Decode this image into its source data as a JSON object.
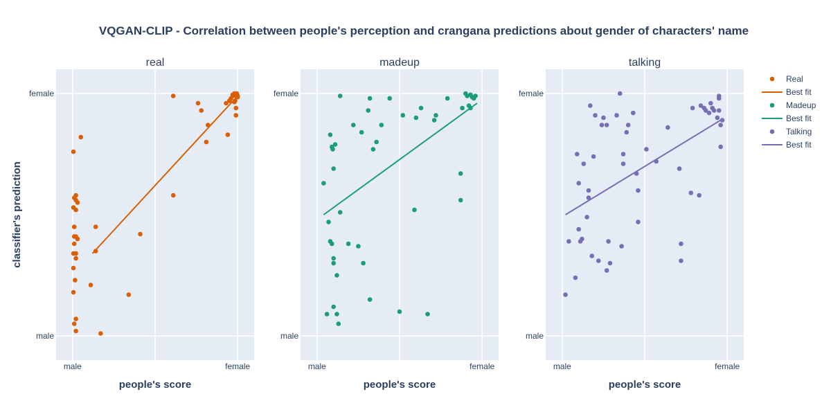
{
  "chart_data": {
    "type": "scatter",
    "title": "VQGAN-CLIP - Correlation between people's perception and crangana predictions about gender of characters' name",
    "ylabel": "classifier's prediction",
    "xlabel": "people's score",
    "x_tick_labels": [
      "male",
      "female"
    ],
    "y_tick_labels": [
      "male",
      "female"
    ],
    "xlim": [
      -0.1,
      1.1
    ],
    "ylim": [
      -0.1,
      1.1
    ],
    "legend_position": "right",
    "grid": true,
    "panels": [
      {
        "subtitle": "real",
        "color": "#d95f02",
        "legend_marker": "Real",
        "legend_line": "Best fit",
        "fit": [
          [
            0.12,
            0.34
          ],
          [
            1.0,
            0.99
          ]
        ],
        "points": [
          [
            0.02,
            0.58
          ],
          [
            0.05,
            0.82
          ],
          [
            0.01,
            0.57
          ],
          [
            0.02,
            0.56
          ],
          [
            0.03,
            0.55
          ],
          [
            0.005,
            0.53
          ],
          [
            0.02,
            0.52
          ],
          [
            0.01,
            0.45
          ],
          [
            0.01,
            0.41
          ],
          [
            0.02,
            0.41
          ],
          [
            0.03,
            0.4
          ],
          [
            0.01,
            0.38
          ],
          [
            0.005,
            0.34
          ],
          [
            0.02,
            0.34
          ],
          [
            0.02,
            0.32
          ],
          [
            0.005,
            0.28
          ],
          [
            0.015,
            0.23
          ],
          [
            0.005,
            0.18
          ],
          [
            0.02,
            0.07
          ],
          [
            0.01,
            0.05
          ],
          [
            0.02,
            0.02
          ],
          [
            0.17,
            0.01
          ],
          [
            0.11,
            0.21
          ],
          [
            0.14,
            0.35
          ],
          [
            0.14,
            0.45
          ],
          [
            0.34,
            0.17
          ],
          [
            0.41,
            0.42
          ],
          [
            0.005,
            0.76
          ],
          [
            0.61,
            0.58
          ],
          [
            0.61,
            0.99
          ],
          [
            0.76,
            0.96
          ],
          [
            0.78,
            0.93
          ],
          [
            0.82,
            0.87
          ],
          [
            0.81,
            0.8
          ],
          [
            0.94,
            0.83
          ],
          [
            0.93,
            0.96
          ],
          [
            0.95,
            0.97
          ],
          [
            0.96,
            0.98
          ],
          [
            0.97,
            0.99
          ],
          [
            0.98,
            1.0
          ],
          [
            0.99,
            0.99
          ],
          [
            1.0,
            0.99
          ],
          [
            0.985,
            0.97
          ],
          [
            0.97,
            0.995
          ],
          [
            0.995,
            1.0
          ],
          [
            0.98,
            0.965
          ],
          [
            0.99,
            0.94
          ],
          [
            0.99,
            0.91
          ],
          [
            1.0,
            0.985
          ]
        ]
      },
      {
        "subtitle": "madeup",
        "color": "#1b9e77",
        "legend_marker": "Madeup",
        "legend_line": "Best fit",
        "fit": [
          [
            0.04,
            0.5
          ],
          [
            0.97,
            0.96
          ]
        ],
        "points": [
          [
            0.04,
            0.63
          ],
          [
            0.07,
            0.47
          ],
          [
            0.08,
            0.83
          ],
          [
            0.09,
            0.78
          ],
          [
            0.095,
            0.77
          ],
          [
            0.1,
            0.69
          ],
          [
            0.11,
            0.79
          ],
          [
            0.12,
            0.25
          ],
          [
            0.14,
            0.51
          ],
          [
            0.08,
            0.39
          ],
          [
            0.09,
            0.38
          ],
          [
            0.1,
            0.32
          ],
          [
            0.1,
            0.3
          ],
          [
            0.06,
            0.09
          ],
          [
            0.1,
            0.12
          ],
          [
            0.12,
            0.09
          ],
          [
            0.13,
            0.05
          ],
          [
            0.19,
            0.38
          ],
          [
            0.22,
            0.87
          ],
          [
            0.27,
            0.84
          ],
          [
            0.28,
            0.3
          ],
          [
            0.25,
            0.37
          ],
          [
            0.31,
            0.93
          ],
          [
            0.32,
            0.15
          ],
          [
            0.34,
            0.77
          ],
          [
            0.36,
            0.8
          ],
          [
            0.39,
            0.87
          ],
          [
            0.44,
            0.98
          ],
          [
            0.5,
            0.1
          ],
          [
            0.52,
            0.91
          ],
          [
            0.59,
            0.52
          ],
          [
            0.6,
            0.9
          ],
          [
            0.63,
            0.94
          ],
          [
            0.67,
            0.09
          ],
          [
            0.71,
            0.89
          ],
          [
            0.72,
            0.91
          ],
          [
            0.79,
            0.98
          ],
          [
            0.87,
            0.67
          ],
          [
            0.87,
            0.56
          ],
          [
            0.88,
            0.94
          ],
          [
            0.9,
            1.0
          ],
          [
            0.91,
            0.99
          ],
          [
            0.92,
            0.95
          ],
          [
            0.93,
            0.995
          ],
          [
            0.94,
            0.985
          ],
          [
            0.95,
            0.98
          ],
          [
            0.96,
            0.99
          ],
          [
            0.93,
            0.94
          ],
          [
            0.14,
            0.99
          ],
          [
            0.32,
            0.98
          ]
        ]
      },
      {
        "subtitle": "talking",
        "color": "#7570b3",
        "legend_marker": "Talking",
        "legend_line": "Best fit",
        "fit": [
          [
            0.02,
            0.5
          ],
          [
            0.96,
            0.89
          ]
        ],
        "points": [
          [
            0.02,
            0.17
          ],
          [
            0.04,
            0.39
          ],
          [
            0.08,
            0.24
          ],
          [
            0.09,
            0.75
          ],
          [
            0.1,
            0.44
          ],
          [
            0.1,
            0.63
          ],
          [
            0.11,
            0.39
          ],
          [
            0.12,
            0.4
          ],
          [
            0.13,
            0.71
          ],
          [
            0.15,
            0.49
          ],
          [
            0.16,
            0.57
          ],
          [
            0.16,
            0.6
          ],
          [
            0.17,
            0.95
          ],
          [
            0.18,
            0.33
          ],
          [
            0.19,
            0.74
          ],
          [
            0.2,
            0.91
          ],
          [
            0.22,
            0.31
          ],
          [
            0.24,
            0.87
          ],
          [
            0.25,
            0.9
          ],
          [
            0.27,
            0.87
          ],
          [
            0.27,
            0.27
          ],
          [
            0.28,
            0.39
          ],
          [
            0.29,
            0.3
          ],
          [
            0.33,
            0.91
          ],
          [
            0.35,
            1.0
          ],
          [
            0.36,
            0.37
          ],
          [
            0.37,
            0.71
          ],
          [
            0.37,
            0.75
          ],
          [
            0.39,
            0.84
          ],
          [
            0.4,
            0.87
          ],
          [
            0.43,
            0.92
          ],
          [
            0.45,
            0.67
          ],
          [
            0.46,
            0.6
          ],
          [
            0.46,
            0.47
          ],
          [
            0.51,
            0.77
          ],
          [
            0.57,
            0.72
          ],
          [
            0.64,
            0.86
          ],
          [
            0.71,
            0.69
          ],
          [
            0.72,
            0.38
          ],
          [
            0.72,
            0.31
          ],
          [
            0.78,
            0.59
          ],
          [
            0.79,
            0.94
          ],
          [
            0.83,
            0.58
          ],
          [
            0.84,
            0.95
          ],
          [
            0.86,
            0.94
          ],
          [
            0.87,
            0.93
          ],
          [
            0.89,
            0.92
          ],
          [
            0.9,
            0.96
          ],
          [
            0.91,
            0.94
          ],
          [
            0.92,
            0.93
          ],
          [
            0.95,
            0.99
          ],
          [
            0.95,
            0.98
          ],
          [
            0.95,
            0.93
          ],
          [
            0.96,
            0.87
          ],
          [
            0.96,
            0.78
          ],
          [
            0.94,
            0.9
          ],
          [
            0.97,
            0.89
          ]
        ]
      }
    ]
  }
}
